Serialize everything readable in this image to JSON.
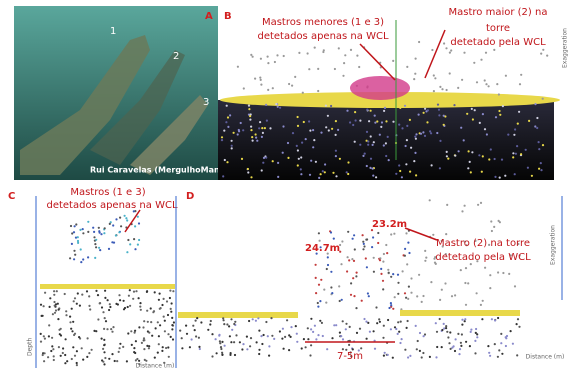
{
  "panels": {
    "a": {
      "label": "A",
      "markers": [
        "1",
        "2",
        "3"
      ],
      "credit": "Rui Caravelas (MergulhoMania.com)"
    },
    "b": {
      "label": "B",
      "note_left": [
        "Mastros menores (1 e 3)",
        "detetados apenas na WCL"
      ],
      "note_right": [
        "Mastro maior (2) na",
        "torre",
        "detetado pela WCL"
      ],
      "axis": "Exaggeration"
    },
    "c": {
      "label": "C",
      "note": [
        "Mastros  (1 e 3)",
        "detetados apenas na WCL"
      ],
      "x_axis": "Distance (m)",
      "y_axis": "Depth"
    },
    "d": {
      "label": "D",
      "depth_left": "24.7m",
      "depth_right": "23.2m",
      "note": [
        "Mastro (2) na torre",
        "detetado pela WCL"
      ],
      "span": "7-5m",
      "x_axis": "Distance (m)",
      "side_axis": "Exaggeration"
    }
  }
}
